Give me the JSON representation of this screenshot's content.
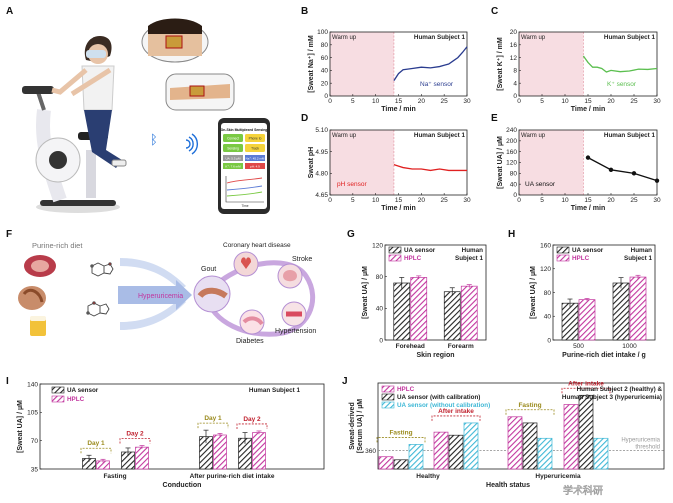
{
  "panel_letters": [
    "A",
    "B",
    "C",
    "D",
    "E",
    "F",
    "G",
    "H",
    "I",
    "J"
  ],
  "panel_a": {
    "app_title": "On-Skin Multiplexed Sensing",
    "app_buttons": [
      "Connect",
      "Phone to",
      "Sensing",
      "Track"
    ],
    "app_readouts": [
      "UA: 5.3 µM",
      "Na⁺: 45.2 mM",
      "K⁺: 7.6 mM",
      "pH: 4.9"
    ],
    "app_axis": "Time"
  },
  "panel_f": {
    "source_label": "Purine-rich diet",
    "arrow_label": "Hyperuricemia",
    "diseases": [
      "Coronary heart disease",
      "Gout",
      "Stroke",
      "Hypertension",
      "Diabetes"
    ]
  },
  "colors": {
    "na": "#2a3c8f",
    "k": "#5bbf4f",
    "ph": "#e02020",
    "ua_line": "#111111",
    "warmup": "#f7dde2",
    "hplc": "#c2359e",
    "calib_off": "#3fb8d6",
    "dark": "#222222"
  },
  "chart_data": [
    {
      "id": "B",
      "type": "line",
      "subject": "Human Subject 1",
      "warmup_label": "Warm up",
      "series_name": "Na⁺ sensor",
      "ylabel": "[Sweat Na⁺] / mM",
      "xlabel": "Time / min",
      "xlim": [
        0,
        30
      ],
      "ylim": [
        0,
        100
      ],
      "xticks": [
        0,
        5,
        10,
        15,
        20,
        25,
        30
      ],
      "yticks": [
        0,
        20,
        40,
        60,
        80,
        100
      ],
      "warmup_x": [
        0,
        14
      ],
      "x": [
        14,
        15,
        16,
        17,
        18,
        20,
        22,
        24,
        25,
        26,
        27,
        28,
        29,
        30
      ],
      "y": [
        24,
        35,
        41,
        42,
        43,
        45,
        44,
        46,
        48,
        50,
        55,
        60,
        68,
        77
      ]
    },
    {
      "id": "C",
      "type": "line",
      "subject": "Human Subject 1",
      "warmup_label": "Warm up",
      "series_name": "K⁺ sensor",
      "ylabel": "[Sweat K⁺] / mM",
      "xlabel": "Time / min",
      "xlim": [
        0,
        30
      ],
      "ylim": [
        0,
        20
      ],
      "xticks": [
        0,
        5,
        10,
        15,
        20,
        25,
        30
      ],
      "yticks": [
        0,
        4,
        8,
        12,
        16,
        20
      ],
      "warmup_x": [
        0,
        14
      ],
      "x": [
        14,
        15,
        16,
        17,
        18,
        19,
        20,
        22,
        24,
        26,
        28,
        30
      ],
      "y": [
        12.5,
        10.5,
        9,
        9,
        8.6,
        7.5,
        8,
        7.6,
        7.8,
        8.4,
        8.3,
        8.6
      ]
    },
    {
      "id": "D",
      "type": "line",
      "subject": "Human Subject 1",
      "warmup_label": "Warm up",
      "series_name": "pH sensor",
      "ylabel": "Sweat pH",
      "xlabel": "Time / min",
      "xlim": [
        0,
        30
      ],
      "ylim": [
        4.65,
        5.1
      ],
      "xticks": [
        0,
        5,
        10,
        15,
        20,
        25,
        30
      ],
      "yticks": [
        4.65,
        4.8,
        4.95,
        5.1
      ],
      "ytick_labels": [
        "4.65",
        "4.80",
        "4.95",
        "5.10"
      ],
      "warmup_x": [
        0,
        14
      ],
      "x": [
        14,
        15,
        16,
        18,
        20,
        22,
        24,
        26,
        28,
        30
      ],
      "y": [
        4.86,
        4.85,
        4.84,
        4.83,
        4.83,
        4.82,
        4.83,
        4.82,
        4.82,
        4.82
      ]
    },
    {
      "id": "E",
      "type": "line",
      "subject": "Human Subject 1",
      "warmup_label": "Warm up",
      "series_name": "UA sensor",
      "ylabel": "[Sweat UA] / µM",
      "xlabel": "Time / min",
      "xlim": [
        0,
        30
      ],
      "ylim": [
        0,
        240
      ],
      "xticks": [
        0,
        5,
        10,
        15,
        20,
        25,
        30
      ],
      "yticks": [
        0,
        40,
        80,
        120,
        160,
        200,
        240
      ],
      "warmup_x": [
        0,
        14
      ],
      "x": [
        15,
        20,
        25,
        30
      ],
      "y": [
        138,
        93,
        80,
        53
      ]
    },
    {
      "id": "G",
      "type": "bar",
      "subject": "Human Subject 1",
      "ylabel": "[Sweat UA] / µM",
      "xlabel": "Skin region",
      "categories": [
        "Forehead",
        "Forearm"
      ],
      "ylim": [
        0,
        120
      ],
      "yticks": [
        0,
        40,
        80,
        120
      ],
      "series": [
        {
          "name": "UA sensor",
          "values": [
            72,
            61
          ],
          "errors": [
            7,
            5
          ]
        },
        {
          "name": "HPLC",
          "values": [
            79,
            68
          ],
          "errors": [
            2,
            2
          ]
        }
      ]
    },
    {
      "id": "H",
      "type": "bar",
      "subject": "Human Subject 1",
      "ylabel": "[Sweat UA] / µM",
      "xlabel": "Purine-rich diet intake / g",
      "categories": [
        "500",
        "1000"
      ],
      "ylim": [
        0,
        160
      ],
      "yticks": [
        0,
        40,
        80,
        120,
        160
      ],
      "series": [
        {
          "name": "UA sensor",
          "values": [
            62,
            96
          ],
          "errors": [
            7,
            9
          ]
        },
        {
          "name": "HPLC",
          "values": [
            68,
            106
          ],
          "errors": [
            2,
            3
          ]
        }
      ]
    },
    {
      "id": "I",
      "type": "bar",
      "subject": "Human Subject 1",
      "ylabel": "[Sweat UA] / µM",
      "xlabel": "Conduction",
      "groups": [
        "Fasting",
        "After purine-rich diet intake"
      ],
      "day_labels": [
        "Day 1",
        "Day 2"
      ],
      "ylim": [
        35,
        140
      ],
      "yticks": [
        35,
        70,
        105,
        140
      ],
      "series": [
        {
          "name": "UA sensor",
          "values": [
            48,
            56,
            75,
            73
          ],
          "errors": [
            4,
            5,
            8,
            7
          ]
        },
        {
          "name": "HPLC",
          "values": [
            45,
            62,
            77,
            80
          ],
          "errors": [
            2,
            2,
            2,
            2
          ]
        }
      ]
    },
    {
      "id": "J",
      "type": "bar",
      "subject": "Human Subject 2 (healthy) & Human Subject 3 (hyperuricemia)",
      "ylabel": "Sweat-derived [Serum UA] / µM",
      "xlabel": "Health status",
      "groups": [
        "Healthy",
        "Hyperuricemia"
      ],
      "subgroup_labels": [
        "Fasting",
        "After intake",
        "Fasting",
        "After intake"
      ],
      "threshold": 360,
      "threshold_label": "Hyperuricemia threshold",
      "ylim": [
        330,
        470
      ],
      "yticks": [
        360
      ],
      "series": [
        {
          "name": "HPLC",
          "values": [
            350,
            390,
            415,
            435
          ]
        },
        {
          "name": "UA sensor (with calibration)",
          "values": [
            345,
            385,
            405,
            450
          ]
        },
        {
          "name": "UA sensor (without calibration)",
          "values": [
            370,
            405,
            380,
            380
          ]
        }
      ]
    }
  ]
}
